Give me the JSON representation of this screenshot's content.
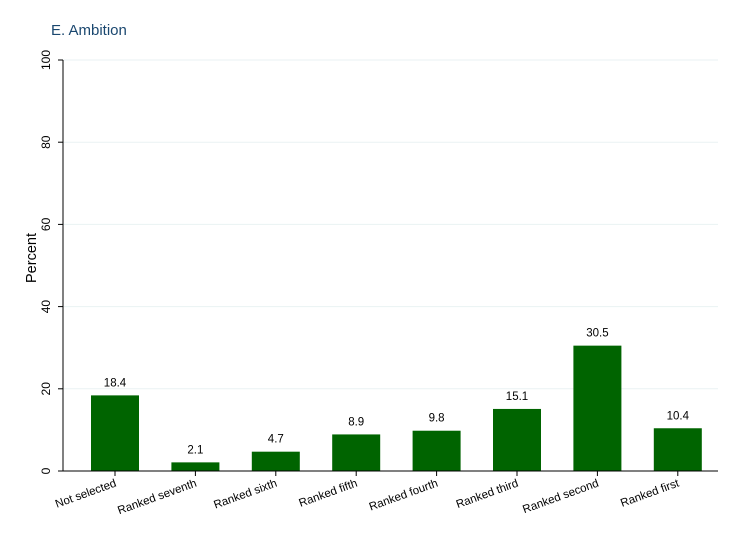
{
  "chart_data": {
    "type": "bar",
    "title": "E. Ambition",
    "xlabel": "",
    "ylabel": "Percent",
    "categories": [
      "Not selected",
      "Ranked seventh",
      "Ranked sixth",
      "Ranked fifth",
      "Ranked fourth",
      "Ranked third",
      "Ranked second",
      "Ranked first"
    ],
    "values": [
      18.4,
      2.1,
      4.7,
      8.9,
      9.8,
      15.1,
      30.5,
      10.4
    ],
    "data_labels": [
      "18.4",
      "2.1",
      "4.7",
      "8.9",
      "9.8",
      "15.1",
      "30.5",
      "10.4"
    ],
    "ylim": [
      0,
      100
    ],
    "yticks": [
      "0",
      "20",
      "40",
      "60",
      "80",
      "100"
    ],
    "grid": true,
    "legend": "none",
    "bar_color": "#006400",
    "grid_color": "#eaf2f3",
    "title_color": "#1a476f"
  }
}
